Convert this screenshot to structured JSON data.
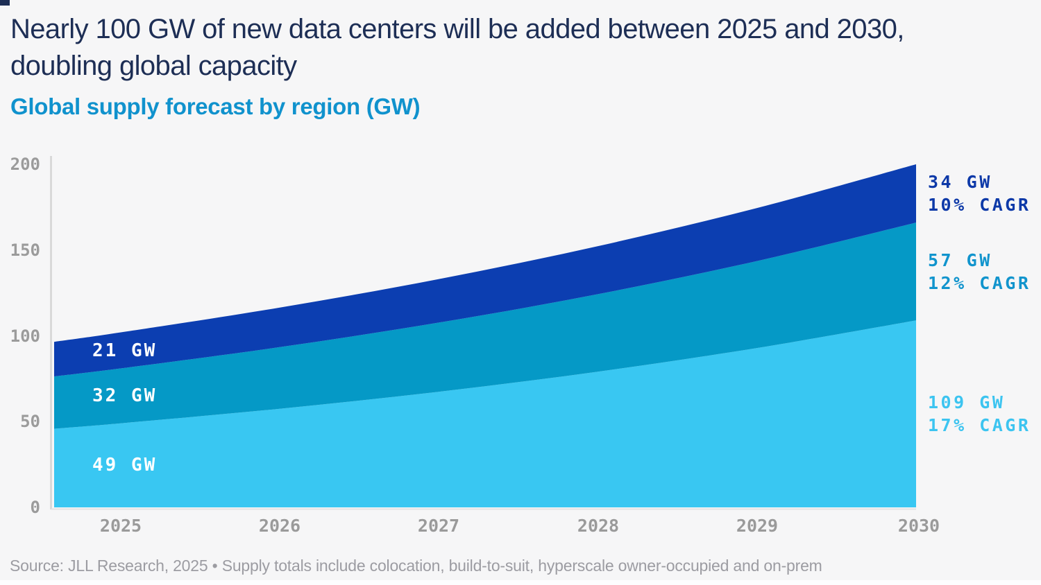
{
  "header": {
    "title_line1": "Nearly 100 GW of new data centers will be added between 2025 and 2030,",
    "title_line2": "doubling global capacity",
    "subtitle": "Global supply forecast by region (GW)"
  },
  "footer": {
    "source": "Source: JLL Research, 2025 • Supply totals include colocation, build-to-suit, hyperscale owner-occupied and on-prem"
  },
  "colors": {
    "background": "#f6f6f7",
    "title_text": "#1d2e55",
    "subtitle_text": "#1092cd",
    "axis_line": "#d9d9d9",
    "tick_text": "#9b9b9b",
    "source_text": "#9c9ca2"
  },
  "chart_data": {
    "type": "area",
    "stacked": true,
    "title": "Global supply forecast by region (GW)",
    "categories": [
      2025,
      2026,
      2027,
      2028,
      2029,
      2030
    ],
    "y_ticks": [
      0,
      50,
      100,
      150,
      200
    ],
    "ylim": [
      0,
      200
    ],
    "grid": false,
    "legend_position": "labels-on-chart",
    "series": [
      {
        "name": "layer-bottom",
        "color": "#39c7f2",
        "values": [
          49,
          57.5,
          67.4,
          79.1,
          92.9,
          109
        ],
        "start_label": "49 GW",
        "end_label": "109 GW",
        "cagr_label": "17% CAGR",
        "end_label_color": "#3cc4f0"
      },
      {
        "name": "layer-middle",
        "color": "#0599c6",
        "values": [
          32,
          35.9,
          40.3,
          45.2,
          50.7,
          57
        ],
        "start_label": "32 GW",
        "end_label": "57 GW",
        "cagr_label": "12% CAGR",
        "end_label_color": "#1194cd"
      },
      {
        "name": "layer-top",
        "color": "#0c3eb1",
        "values": [
          21,
          23.1,
          25.4,
          28,
          30.9,
          34
        ],
        "start_label": "21 GW",
        "end_label": "34 GW",
        "cagr_label": "10% CAGR",
        "end_label_color": "#0d39a8"
      }
    ]
  }
}
